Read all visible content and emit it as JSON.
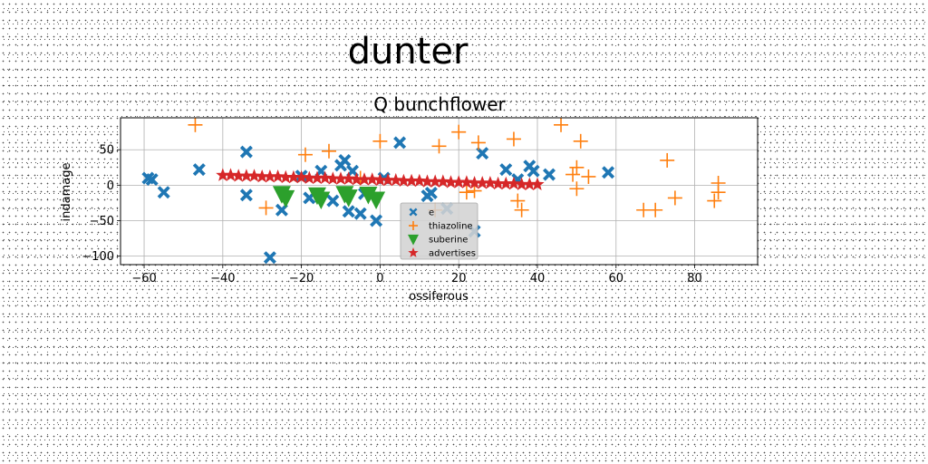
{
  "figure": {
    "suptitle": "dunter"
  },
  "chart_data": {
    "type": "scatter",
    "title": "Q bunchflower",
    "xlabel": "ossiferous",
    "ylabel": "indamage",
    "xlim": [
      -66,
      96
    ],
    "ylim": [
      -112,
      95
    ],
    "xticks": [
      -60,
      -40,
      -20,
      0,
      20,
      40,
      60,
      80
    ],
    "yticks": [
      50,
      0,
      -50,
      -100
    ],
    "grid": true,
    "legend": {
      "position": "lower-center"
    },
    "series": [
      {
        "name": "e",
        "marker": "x-filled",
        "color": "#1f77b4",
        "points": [
          [
            -59,
            10
          ],
          [
            -58,
            8
          ],
          [
            -55,
            -10
          ],
          [
            -46,
            22
          ],
          [
            -34,
            47
          ],
          [
            -34,
            -14
          ],
          [
            -28,
            -102
          ],
          [
            -25,
            -35
          ],
          [
            -20,
            13
          ],
          [
            -18,
            -18
          ],
          [
            -15,
            20
          ],
          [
            -12,
            -22
          ],
          [
            -10,
            28
          ],
          [
            -9,
            35
          ],
          [
            -8,
            -37
          ],
          [
            -7,
            20
          ],
          [
            -5,
            -40
          ],
          [
            -4,
            -12
          ],
          [
            -1,
            -50
          ],
          [
            1,
            10
          ],
          [
            5,
            60
          ],
          [
            12,
            -15
          ],
          [
            13,
            -11
          ],
          [
            17,
            -33
          ],
          [
            24,
            -65
          ],
          [
            26,
            45
          ],
          [
            32,
            22
          ],
          [
            35,
            8
          ],
          [
            38,
            27
          ],
          [
            39,
            20
          ],
          [
            43,
            15
          ],
          [
            58,
            18
          ]
        ]
      },
      {
        "name": "thiazoline",
        "marker": "plus",
        "color": "#ff7f0e",
        "points": [
          [
            -47,
            85
          ],
          [
            -29,
            -32
          ],
          [
            -19,
            43
          ],
          [
            -13,
            48
          ],
          [
            -5,
            10
          ],
          [
            0,
            62
          ],
          [
            14,
            -35
          ],
          [
            15,
            55
          ],
          [
            20,
            75
          ],
          [
            22,
            -10
          ],
          [
            24,
            -8
          ],
          [
            25,
            60
          ],
          [
            34,
            65
          ],
          [
            35,
            -22
          ],
          [
            36,
            -35
          ],
          [
            46,
            85
          ],
          [
            49,
            15
          ],
          [
            50,
            25
          ],
          [
            50,
            -5
          ],
          [
            51,
            62
          ],
          [
            53,
            12
          ],
          [
            67,
            -35
          ],
          [
            70,
            -35
          ],
          [
            73,
            35
          ],
          [
            75,
            -18
          ],
          [
            85,
            -22
          ],
          [
            86,
            3
          ],
          [
            86,
            -10
          ]
        ]
      },
      {
        "name": "suberine",
        "marker": "triangle-down",
        "color": "#2ca02c",
        "points": [
          [
            -25,
            -12
          ],
          [
            -24,
            -18
          ],
          [
            -16,
            -14
          ],
          [
            -15,
            -20
          ],
          [
            -9,
            -12
          ],
          [
            -8,
            -17
          ],
          [
            -3,
            -13
          ],
          [
            -1,
            -20
          ]
        ]
      },
      {
        "name": "advertises",
        "marker": "star",
        "color": "#d62728",
        "points": [
          [
            -40,
            14
          ],
          [
            -38,
            14
          ],
          [
            -36,
            13
          ],
          [
            -34,
            13
          ],
          [
            -32,
            13
          ],
          [
            -30,
            12
          ],
          [
            -28,
            12
          ],
          [
            -26,
            12
          ],
          [
            -24,
            11
          ],
          [
            -22,
            11
          ],
          [
            -20,
            11
          ],
          [
            -18,
            10
          ],
          [
            -16,
            10
          ],
          [
            -14,
            10
          ],
          [
            -12,
            9
          ],
          [
            -10,
            9
          ],
          [
            -8,
            9
          ],
          [
            -6,
            8
          ],
          [
            -4,
            8
          ],
          [
            -2,
            8
          ],
          [
            0,
            7
          ],
          [
            2,
            7
          ],
          [
            4,
            7
          ],
          [
            6,
            6
          ],
          [
            8,
            6
          ],
          [
            10,
            6
          ],
          [
            12,
            5
          ],
          [
            14,
            5
          ],
          [
            16,
            5
          ],
          [
            18,
            4
          ],
          [
            20,
            4
          ],
          [
            22,
            4
          ],
          [
            24,
            3
          ],
          [
            26,
            3
          ],
          [
            28,
            3
          ],
          [
            30,
            2
          ],
          [
            32,
            2
          ],
          [
            34,
            2
          ],
          [
            36,
            1
          ],
          [
            38,
            1
          ],
          [
            40,
            1
          ]
        ]
      }
    ]
  }
}
